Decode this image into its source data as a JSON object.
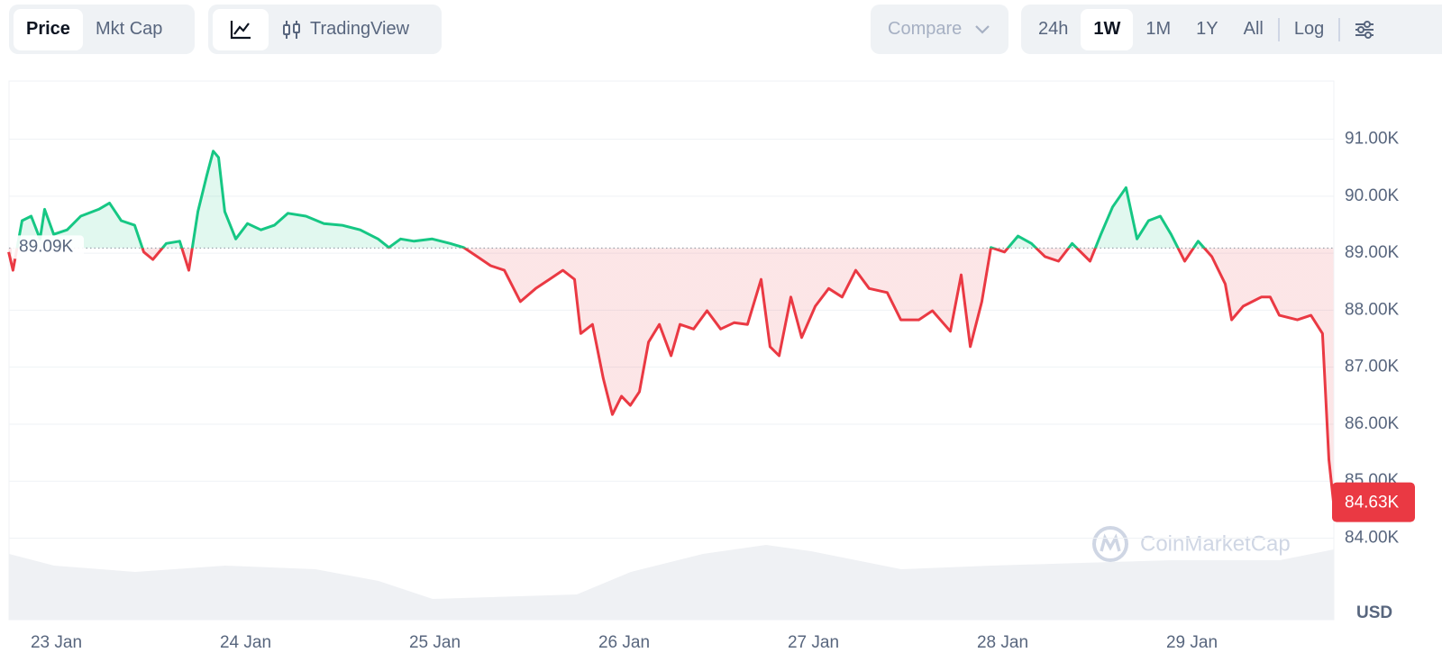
{
  "toolbar": {
    "metric_tabs": [
      "Price",
      "Mkt Cap"
    ],
    "active_metric": 0,
    "chart_style_label": "TradingView",
    "compare": "Compare",
    "ranges": [
      "24h",
      "1W",
      "1M",
      "1Y",
      "All"
    ],
    "active_range": 1,
    "scale": "Log"
  },
  "watermark": "CoinMarketCap",
  "chart_data": {
    "type": "line",
    "x": [
      -0.252,
      -0.229,
      -0.181,
      -0.133,
      -0.086,
      -0.062,
      -0.014,
      0.057,
      0.129,
      0.224,
      0.281,
      0.343,
      0.414,
      0.462,
      0.51,
      0.581,
      0.652,
      0.7,
      0.748,
      0.795,
      0.829,
      0.857,
      0.89,
      0.948,
      1.01,
      1.081,
      1.152,
      1.224,
      1.319,
      1.414,
      1.51,
      1.605,
      1.7,
      1.757,
      1.819,
      1.89,
      1.986,
      2.081,
      2.152,
      2.224,
      2.295,
      2.367,
      2.452,
      2.533,
      2.605,
      2.676,
      2.738,
      2.771,
      2.833,
      2.89,
      2.938,
      2.986,
      3.033,
      3.081,
      3.129,
      3.186,
      3.248,
      3.295,
      3.367,
      3.438,
      3.51,
      3.581,
      3.652,
      3.724,
      3.771,
      3.819,
      3.881,
      3.938,
      4.01,
      4.081,
      4.152,
      4.224,
      4.295,
      4.39,
      4.462,
      4.557,
      4.629,
      4.724,
      4.781,
      4.829,
      4.89,
      4.938,
      5.01,
      5.081,
      5.152,
      5.224,
      5.295,
      5.367,
      5.462,
      5.519,
      5.581,
      5.652,
      5.71,
      5.771,
      5.833,
      5.89,
      5.962,
      6.033,
      6.105,
      6.176,
      6.21,
      6.271,
      6.367,
      6.414,
      6.462,
      6.557,
      6.629,
      6.69,
      6.724,
      6.748
    ],
    "values": [
      89020,
      88700,
      89570,
      89650,
      89250,
      89770,
      89330,
      89410,
      89650,
      89770,
      89880,
      89570,
      89490,
      89020,
      88890,
      89170,
      89210,
      88700,
      89730,
      90360,
      90790,
      90680,
      89730,
      89250,
      89520,
      89410,
      89490,
      89700,
      89650,
      89520,
      89490,
      89410,
      89250,
      89100,
      89250,
      89210,
      89250,
      89170,
      89100,
      88940,
      88780,
      88700,
      88150,
      88380,
      88540,
      88700,
      88540,
      87590,
      87750,
      86800,
      86170,
      86490,
      86330,
      86570,
      87440,
      87750,
      87200,
      87750,
      87670,
      87990,
      87670,
      87780,
      87750,
      88540,
      87360,
      87200,
      88230,
      87520,
      88070,
      88380,
      88230,
      88700,
      88380,
      88310,
      87830,
      87830,
      87990,
      87630,
      88620,
      87360,
      88150,
      89100,
      89020,
      89300,
      89170,
      88940,
      88860,
      89170,
      88860,
      89330,
      89810,
      90150,
      89250,
      89570,
      89650,
      89330,
      88860,
      89210,
      88940,
      88460,
      87830,
      88070,
      88230,
      88230,
      87910,
      87830,
      87910,
      87590,
      85380,
      84630
    ],
    "up_color": "#16c784",
    "down_color": "#ea3943",
    "reference": {
      "value": 89090,
      "label": "89.09K"
    },
    "last": {
      "value": 84630,
      "label": "84.63K"
    },
    "xlim": [
      -0.25,
      6.75
    ],
    "xticks": [
      {
        "value": 0,
        "label": "23 Jan"
      },
      {
        "value": 1,
        "label": "24 Jan"
      },
      {
        "value": 2,
        "label": "25 Jan"
      },
      {
        "value": 3,
        "label": "26 Jan"
      },
      {
        "value": 4,
        "label": "27 Jan"
      },
      {
        "value": 5,
        "label": "28 Jan"
      },
      {
        "value": 6,
        "label": "29 Jan"
      }
    ],
    "ylim": [
      82570,
      92020
    ],
    "yticks": [
      {
        "value": 84000,
        "label": "84.00K"
      },
      {
        "value": 85000,
        "label": "85.00K"
      },
      {
        "value": 86000,
        "label": "86.00K"
      },
      {
        "value": 87000,
        "label": "87.00K"
      },
      {
        "value": 88000,
        "label": "88.00K"
      },
      {
        "value": 89000,
        "label": "89.00K"
      },
      {
        "value": 90000,
        "label": "90.00K"
      },
      {
        "value": 91000,
        "label": "91.00K"
      }
    ],
    "grid": true,
    "currency": "USD"
  }
}
